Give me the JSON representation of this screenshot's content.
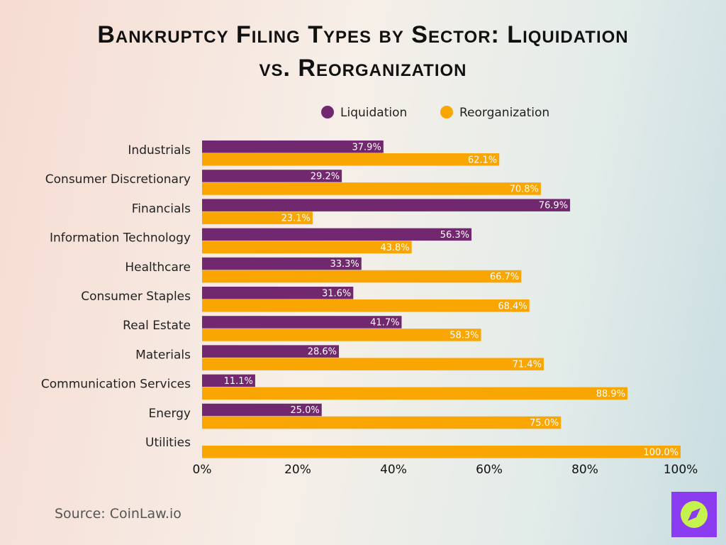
{
  "chart_data": {
    "type": "bar",
    "orientation": "horizontal",
    "title": "Bankruptcy Filing Types by Sector: Liquidation vs. Reorganization",
    "categories": [
      "Industrials",
      "Consumer Discretionary",
      "Financials",
      "Information Technology",
      "Healthcare",
      "Consumer Staples",
      "Real Estate",
      "Materials",
      "Communication Services",
      "Energy",
      "Utilities"
    ],
    "series": [
      {
        "name": "Liquidation",
        "color": "#72286e",
        "values": [
          37.9,
          29.2,
          76.9,
          56.3,
          33.3,
          31.6,
          41.7,
          28.6,
          11.1,
          25.0,
          null
        ],
        "value_labels": [
          "37.9%",
          "29.2%",
          "76.9%",
          "56.3%",
          "33.3%",
          "31.6%",
          "41.7%",
          "28.6%",
          "11.1%",
          "25.0%",
          null
        ]
      },
      {
        "name": "Reorganization",
        "color": "#f9a602",
        "values": [
          62.1,
          70.8,
          23.1,
          43.8,
          66.7,
          68.4,
          58.3,
          71.4,
          88.9,
          75.0,
          100.0
        ],
        "value_labels": [
          "62.1%",
          "70.8%",
          "23.1%",
          "43.8%",
          "66.7%",
          "68.4%",
          "58.3%",
          "71.4%",
          "88.9%",
          "75.0%",
          "100.0%"
        ]
      }
    ],
    "xlim": [
      0,
      100
    ],
    "xticks": [
      {
        "value": 0,
        "label": "0%"
      },
      {
        "value": 20,
        "label": "20%"
      },
      {
        "value": 40,
        "label": "40%"
      },
      {
        "value": 60,
        "label": "60%"
      },
      {
        "value": 80,
        "label": "80%"
      },
      {
        "value": 100,
        "label": "100%"
      }
    ],
    "legend": "top",
    "source": "Source: CoinLaw.io"
  }
}
